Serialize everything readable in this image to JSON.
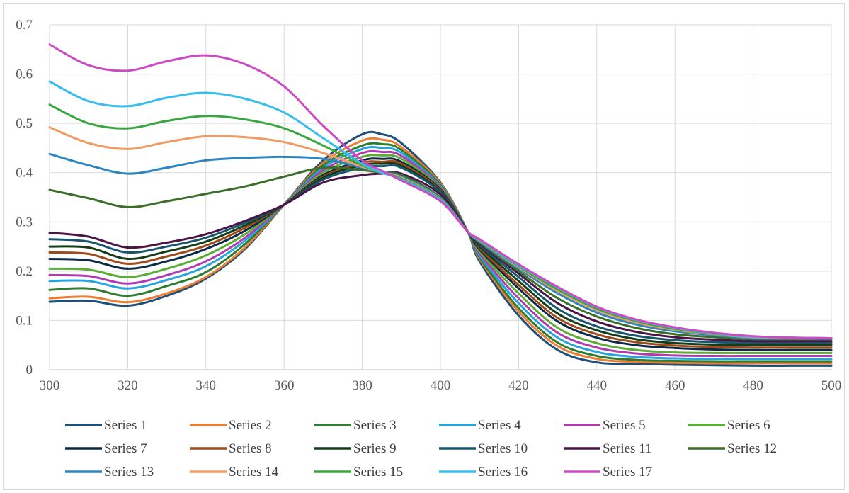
{
  "chart_data": {
    "type": "line",
    "xlim": [
      300,
      500
    ],
    "ylim": [
      0,
      0.7
    ],
    "x_ticks": [
      300,
      320,
      340,
      360,
      380,
      400,
      420,
      440,
      460,
      480,
      500
    ],
    "y_ticks": [
      0,
      0.1,
      0.2,
      0.3,
      0.4,
      0.5,
      0.6,
      0.7
    ],
    "x_tick_labels": [
      "300",
      "320",
      "340",
      "360",
      "380",
      "400",
      "420",
      "440",
      "460",
      "480",
      "500"
    ],
    "y_tick_labels": [
      "0",
      "0.1",
      "0.2",
      "0.3",
      "0.4",
      "0.5",
      "0.6",
      "0.7"
    ],
    "grid": true,
    "legend_position": "bottom",
    "x": [
      300,
      310,
      320,
      330,
      340,
      350,
      360,
      370,
      380,
      385,
      390,
      400,
      407,
      410,
      420,
      430,
      440,
      450,
      460,
      470,
      480,
      490,
      500
    ],
    "series": [
      {
        "name": "Series 1",
        "color": "#1f4e79",
        "values": [
          0.138,
          0.14,
          0.13,
          0.15,
          0.185,
          0.245,
          0.335,
          0.425,
          0.478,
          0.478,
          0.46,
          0.38,
          0.28,
          0.22,
          0.11,
          0.04,
          0.015,
          0.012,
          0.01,
          0.009,
          0.008,
          0.008,
          0.008
        ]
      },
      {
        "name": "Series 2",
        "color": "#ed7d31",
        "values": [
          0.145,
          0.148,
          0.137,
          0.155,
          0.188,
          0.248,
          0.335,
          0.42,
          0.465,
          0.467,
          0.452,
          0.378,
          0.28,
          0.225,
          0.118,
          0.048,
          0.022,
          0.016,
          0.014,
          0.013,
          0.013,
          0.013,
          0.013
        ]
      },
      {
        "name": "Series 3",
        "color": "#2e7d32",
        "values": [
          0.162,
          0.165,
          0.15,
          0.17,
          0.198,
          0.255,
          0.335,
          0.415,
          0.455,
          0.458,
          0.446,
          0.375,
          0.28,
          0.228,
          0.125,
          0.055,
          0.028,
          0.02,
          0.018,
          0.017,
          0.017,
          0.017,
          0.017
        ]
      },
      {
        "name": "Series 4",
        "color": "#29a3db",
        "values": [
          0.18,
          0.18,
          0.165,
          0.182,
          0.21,
          0.262,
          0.335,
          0.41,
          0.448,
          0.45,
          0.44,
          0.372,
          0.28,
          0.232,
          0.135,
          0.065,
          0.036,
          0.026,
          0.023,
          0.022,
          0.022,
          0.022,
          0.022
        ]
      },
      {
        "name": "Series 5",
        "color": "#b03cb0",
        "values": [
          0.192,
          0.19,
          0.175,
          0.192,
          0.22,
          0.268,
          0.335,
          0.405,
          0.44,
          0.442,
          0.434,
          0.37,
          0.28,
          0.236,
          0.145,
          0.075,
          0.045,
          0.033,
          0.029,
          0.028,
          0.028,
          0.028,
          0.028
        ]
      },
      {
        "name": "Series 6",
        "color": "#5cad35",
        "values": [
          0.205,
          0.203,
          0.188,
          0.205,
          0.232,
          0.275,
          0.335,
          0.4,
          0.432,
          0.435,
          0.428,
          0.368,
          0.28,
          0.24,
          0.155,
          0.085,
          0.054,
          0.04,
          0.035,
          0.034,
          0.034,
          0.034,
          0.034
        ]
      },
      {
        "name": "Series 7",
        "color": "#0d2a45",
        "values": [
          0.225,
          0.222,
          0.205,
          0.22,
          0.245,
          0.282,
          0.335,
          0.395,
          0.425,
          0.428,
          0.422,
          0.366,
          0.28,
          0.244,
          0.165,
          0.098,
          0.065,
          0.05,
          0.044,
          0.041,
          0.04,
          0.04,
          0.04
        ]
      },
      {
        "name": "Series 8",
        "color": "#9e4a1a",
        "values": [
          0.238,
          0.235,
          0.215,
          0.23,
          0.252,
          0.288,
          0.335,
          0.392,
          0.42,
          0.422,
          0.418,
          0.364,
          0.28,
          0.247,
          0.172,
          0.105,
          0.072,
          0.056,
          0.049,
          0.046,
          0.045,
          0.045,
          0.045
        ]
      },
      {
        "name": "Series 9",
        "color": "#153d1a",
        "values": [
          0.25,
          0.248,
          0.225,
          0.24,
          0.26,
          0.293,
          0.335,
          0.39,
          0.415,
          0.418,
          0.414,
          0.362,
          0.28,
          0.25,
          0.18,
          0.114,
          0.08,
          0.062,
          0.054,
          0.051,
          0.05,
          0.05,
          0.05
        ]
      },
      {
        "name": "Series 10",
        "color": "#17566e",
        "values": [
          0.265,
          0.26,
          0.238,
          0.25,
          0.268,
          0.298,
          0.335,
          0.386,
          0.41,
          0.413,
          0.41,
          0.36,
          0.28,
          0.253,
          0.188,
          0.124,
          0.088,
          0.069,
          0.06,
          0.056,
          0.055,
          0.055,
          0.055
        ]
      },
      {
        "name": "Series 11",
        "color": "#4a1446",
        "values": [
          0.278,
          0.27,
          0.248,
          0.258,
          0.275,
          0.302,
          0.335,
          0.38,
          0.395,
          0.398,
          0.398,
          0.356,
          0.28,
          0.256,
          0.195,
          0.135,
          0.098,
          0.077,
          0.066,
          0.061,
          0.058,
          0.058,
          0.058
        ]
      },
      {
        "name": "Series 12",
        "color": "#3a6e29",
        "values": [
          0.365,
          0.348,
          0.33,
          0.342,
          0.357,
          0.372,
          0.392,
          0.41,
          0.405,
          0.4,
          0.395,
          0.35,
          0.28,
          0.258,
          0.2,
          0.145,
          0.108,
          0.085,
          0.072,
          0.066,
          0.062,
          0.062,
          0.062
        ]
      },
      {
        "name": "Series 13",
        "color": "#2e86c1",
        "values": [
          0.438,
          0.415,
          0.398,
          0.41,
          0.425,
          0.43,
          0.432,
          0.428,
          0.41,
          0.4,
          0.392,
          0.348,
          0.28,
          0.26,
          0.205,
          0.155,
          0.116,
          0.092,
          0.078,
          0.07,
          0.064,
          0.063,
          0.063
        ]
      },
      {
        "name": "Series 14",
        "color": "#f09b63",
        "values": [
          0.492,
          0.46,
          0.448,
          0.462,
          0.474,
          0.472,
          0.462,
          0.44,
          0.412,
          0.4,
          0.39,
          0.346,
          0.28,
          0.262,
          0.208,
          0.16,
          0.121,
          0.096,
          0.081,
          0.072,
          0.066,
          0.064,
          0.064
        ]
      },
      {
        "name": "Series 15",
        "color": "#3aa640",
        "values": [
          0.538,
          0.5,
          0.49,
          0.505,
          0.515,
          0.508,
          0.49,
          0.455,
          0.415,
          0.4,
          0.388,
          0.345,
          0.28,
          0.263,
          0.21,
          0.163,
          0.124,
          0.099,
          0.083,
          0.073,
          0.067,
          0.065,
          0.064
        ]
      },
      {
        "name": "Series 16",
        "color": "#38bdec",
        "values": [
          0.585,
          0.545,
          0.535,
          0.552,
          0.562,
          0.55,
          0.522,
          0.47,
          0.418,
          0.4,
          0.386,
          0.344,
          0.28,
          0.264,
          0.212,
          0.167,
          0.127,
          0.101,
          0.085,
          0.074,
          0.067,
          0.065,
          0.064
        ]
      },
      {
        "name": "Series 17",
        "color": "#cc4bc4",
        "values": [
          0.66,
          0.618,
          0.607,
          0.626,
          0.638,
          0.62,
          0.575,
          0.495,
          0.425,
          0.404,
          0.384,
          0.342,
          0.28,
          0.265,
          0.214,
          0.168,
          0.128,
          0.102,
          0.086,
          0.075,
          0.068,
          0.065,
          0.064
        ]
      }
    ]
  }
}
